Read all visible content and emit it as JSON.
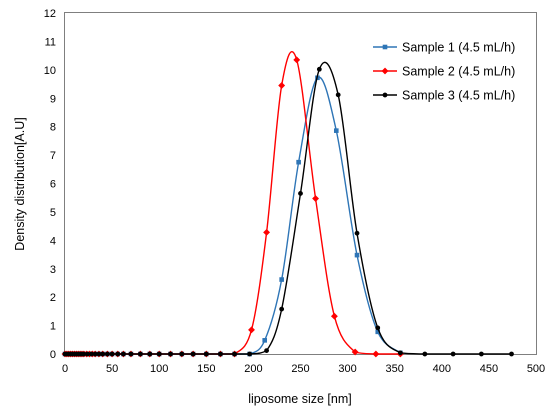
{
  "chart_data": {
    "type": "line",
    "title": "",
    "xlabel": "liposome size [nm]",
    "ylabel": "Density distribution[A.U]",
    "xlim": [
      0,
      500
    ],
    "ylim": [
      0,
      12
    ],
    "x_ticks": [
      "0",
      "50",
      "100",
      "150",
      "200",
      "250",
      "300",
      "350",
      "400",
      "450",
      "500"
    ],
    "y_ticks": [
      "0",
      "1",
      "2",
      "3",
      "4",
      "5",
      "6",
      "7",
      "8",
      "9",
      "10",
      "11",
      "12"
    ],
    "grid": false,
    "legend_position": "top-right",
    "series": [
      {
        "name": "Sample 1 (4.5 mL/h)",
        "color": "#2e75b6",
        "marker": "square",
        "x": [
          0,
          2,
          4,
          6,
          8,
          10,
          12,
          14,
          16,
          18,
          20,
          24,
          28,
          32,
          36,
          40,
          45,
          50,
          56,
          62,
          70,
          80,
          90,
          100,
          112,
          124,
          136,
          150,
          165,
          180,
          196,
          212,
          230,
          248,
          268,
          288,
          310,
          332,
          356
        ],
        "y": [
          0,
          0,
          0,
          0,
          0,
          0,
          0,
          0,
          0,
          0,
          0,
          0,
          0,
          0,
          0,
          0,
          0,
          0,
          0,
          0,
          0,
          0,
          0,
          0,
          0,
          0,
          0,
          0,
          0,
          0,
          0,
          0.48,
          2.62,
          6.75,
          9.72,
          7.86,
          3.48,
          0.78,
          0.04
        ]
      },
      {
        "name": "Sample 2 (4.5 mL/h)",
        "color": "#ff0000",
        "marker": "diamond",
        "x": [
          0,
          2,
          4,
          6,
          8,
          10,
          12,
          14,
          16,
          18,
          20,
          23,
          26,
          29,
          32,
          36,
          40,
          45,
          50,
          56,
          62,
          70,
          80,
          90,
          100,
          112,
          124,
          136,
          150,
          165,
          180,
          198,
          214,
          230,
          246,
          266,
          286,
          308,
          330,
          356
        ],
        "y": [
          0,
          0,
          0,
          0,
          0,
          0,
          0,
          0,
          0,
          0,
          0,
          0,
          0,
          0,
          0,
          0,
          0,
          0,
          0,
          0,
          0,
          0,
          0,
          0,
          0,
          0,
          0,
          0,
          0,
          0,
          0,
          0.85,
          4.28,
          9.45,
          10.35,
          5.47,
          1.33,
          0.07,
          0,
          0
        ]
      },
      {
        "name": "Sample 3 (4.5 mL/h)",
        "color": "#000000",
        "marker": "circle",
        "x": [
          0,
          2,
          4,
          6,
          8,
          10,
          12,
          14,
          16,
          18,
          20,
          24,
          28,
          32,
          36,
          40,
          45,
          50,
          56,
          62,
          70,
          80,
          90,
          100,
          112,
          124,
          136,
          150,
          165,
          180,
          196,
          214,
          230,
          250,
          270,
          290,
          310,
          332,
          356,
          382,
          412,
          442,
          474
        ],
        "y": [
          0,
          0,
          0,
          0,
          0,
          0,
          0,
          0,
          0,
          0,
          0,
          0,
          0,
          0,
          0,
          0,
          0,
          0,
          0,
          0,
          0,
          0,
          0,
          0,
          0,
          0,
          0,
          0,
          0,
          0,
          0,
          0.12,
          1.58,
          5.65,
          10.02,
          9.12,
          4.25,
          0.92,
          0.04,
          0,
          0,
          0,
          0
        ]
      }
    ]
  }
}
